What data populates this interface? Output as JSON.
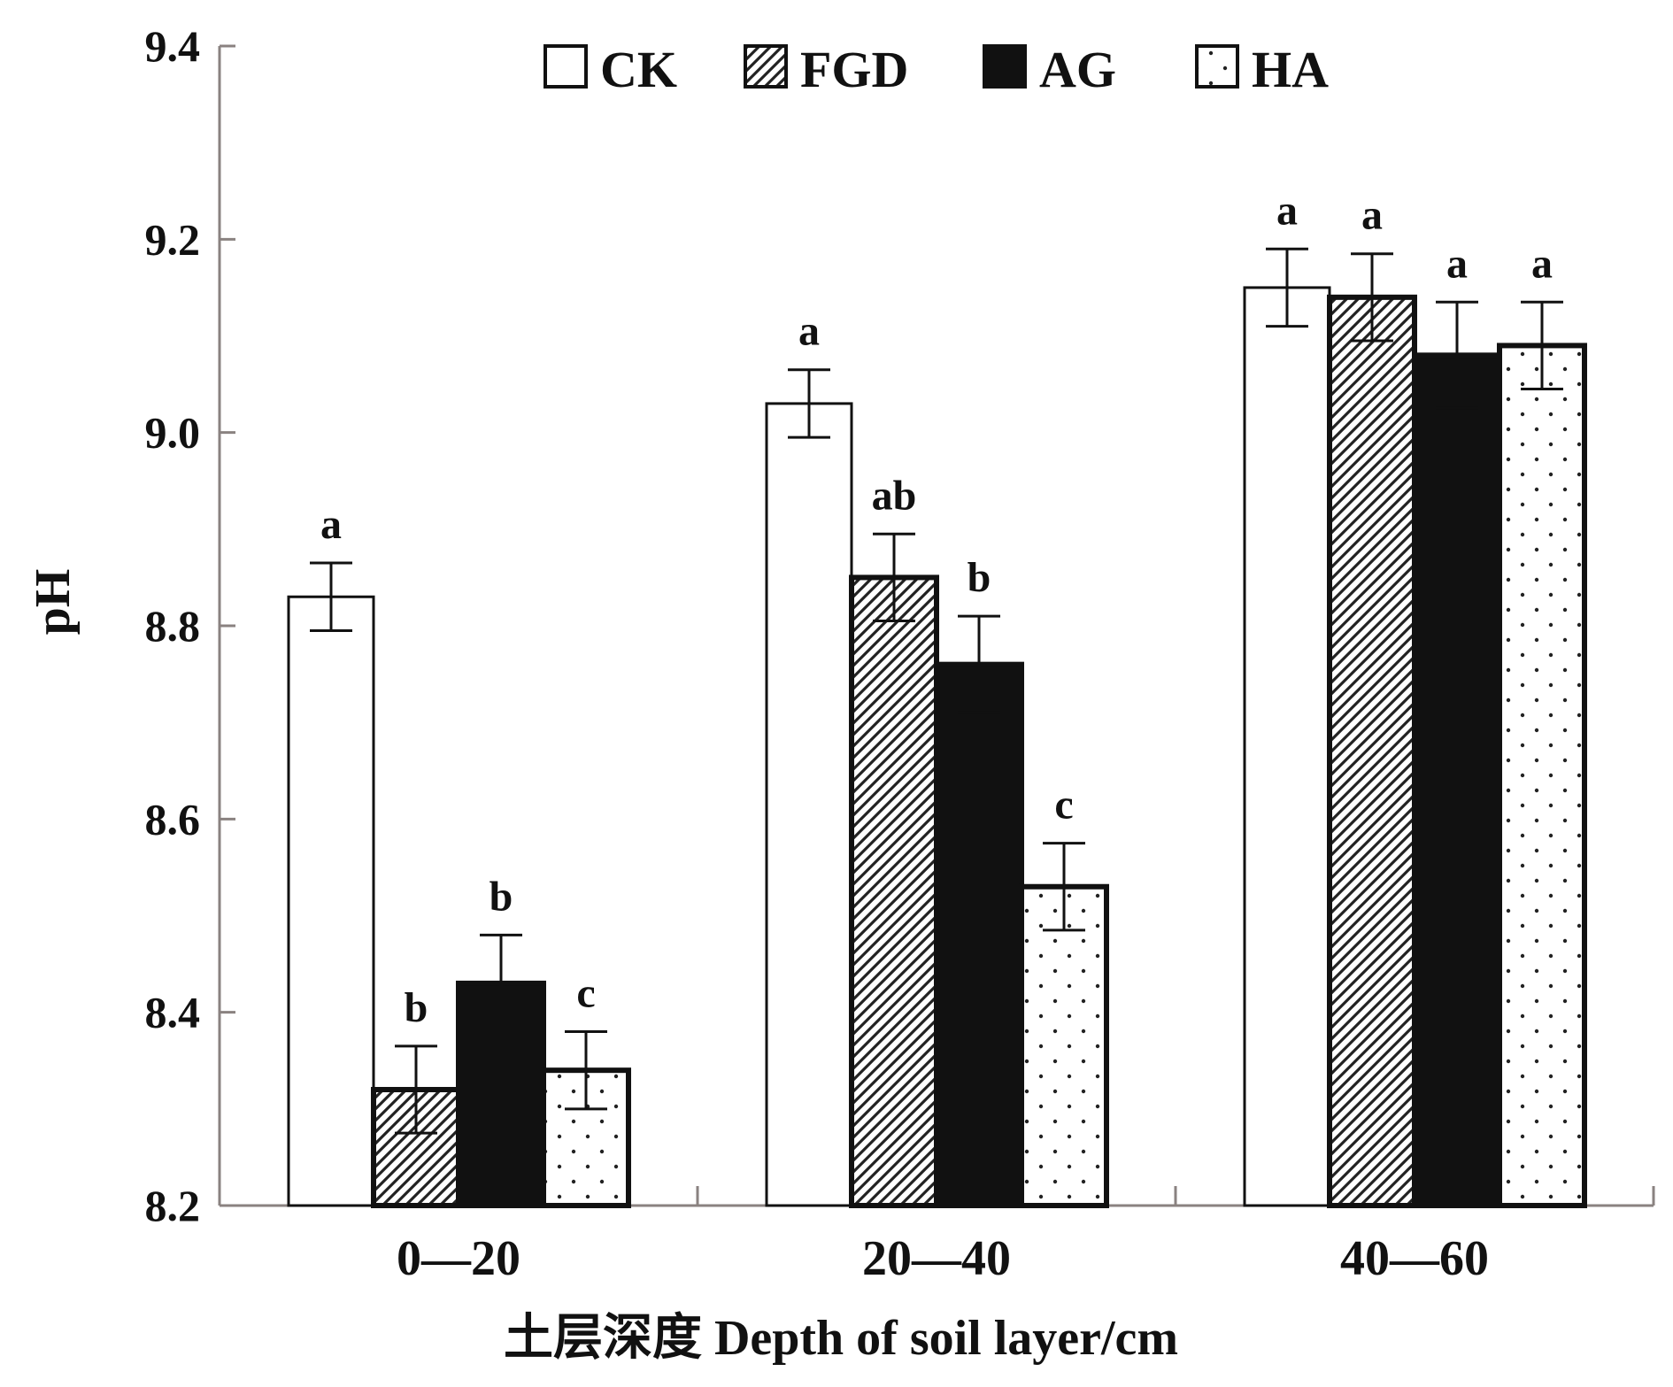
{
  "chart_data": {
    "type": "bar",
    "title": "",
    "xlabel": "土层深度 Depth of soil layer/cm",
    "ylabel": "pH",
    "ylim": [
      8.2,
      9.4
    ],
    "yticks": [
      "8.2",
      "8.4",
      "8.6",
      "8.8",
      "9.0",
      "9.2",
      "9.4"
    ],
    "categories": [
      "0—20",
      "20—40",
      "40—60"
    ],
    "legend_position": "top",
    "grid": false,
    "series": [
      {
        "name": "CK",
        "pattern": "empty",
        "values": [
          8.83,
          9.03,
          9.15
        ],
        "errors": [
          0.035,
          0.035,
          0.04
        ],
        "labels": [
          "a",
          "a",
          "a"
        ]
      },
      {
        "name": "FGD",
        "pattern": "hatch",
        "values": [
          8.32,
          8.85,
          9.14
        ],
        "errors": [
          0.045,
          0.045,
          0.045
        ],
        "labels": [
          "b",
          "ab",
          "a"
        ]
      },
      {
        "name": "AG",
        "pattern": "solid",
        "values": [
          8.43,
          8.76,
          9.08
        ],
        "errors": [
          0.05,
          0.05,
          0.055
        ],
        "labels": [
          "b",
          "b",
          "a"
        ]
      },
      {
        "name": "HA",
        "pattern": "dots",
        "values": [
          8.34,
          8.53,
          9.09
        ],
        "errors": [
          0.04,
          0.045,
          0.045
        ],
        "labels": [
          "c",
          "c",
          "a"
        ]
      }
    ],
    "colors": {
      "axis": "#8a8280",
      "bar_stroke": "#111111",
      "solid_fill": "#111111",
      "empty_fill": "#ffffff"
    }
  }
}
